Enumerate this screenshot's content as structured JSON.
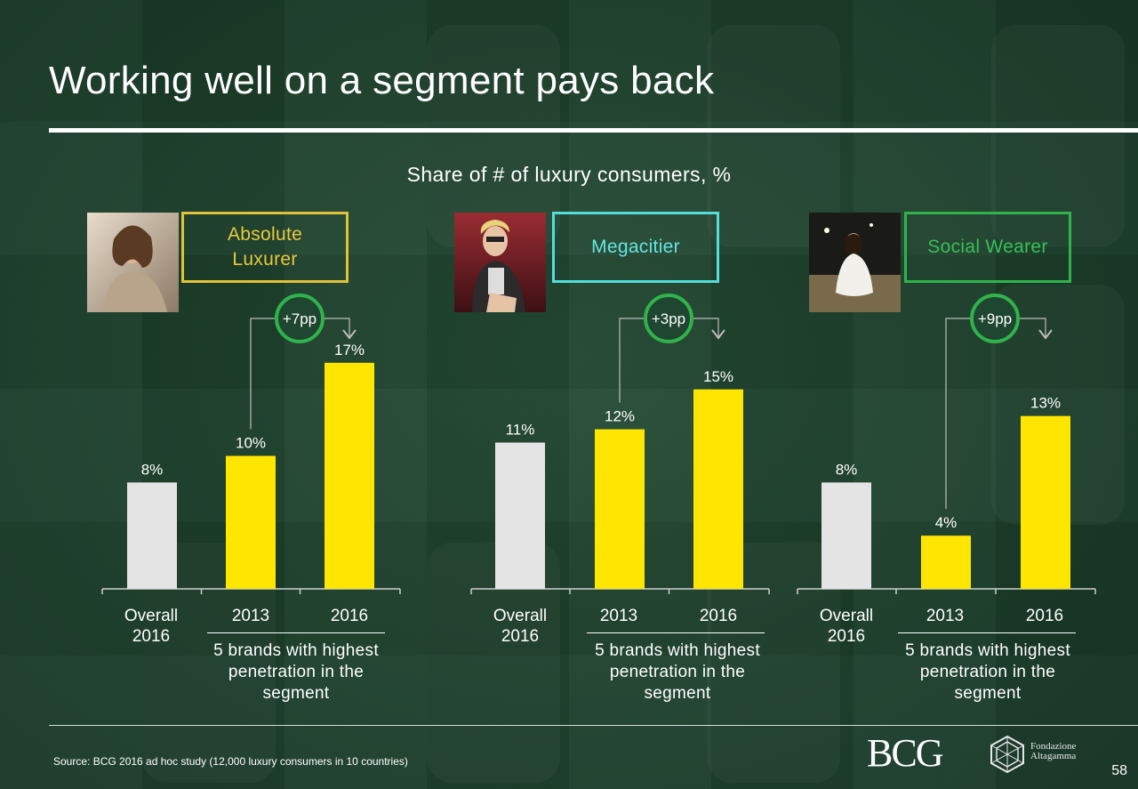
{
  "title": "Working well on a segment pays back",
  "subtitle": "Share of # of luxury consumers, %",
  "colors": {
    "background": "#1c3f2b",
    "overall_bar": "#e4e4e4",
    "brand_bar": "#ffe600",
    "diff_circle": "#2fb34a",
    "absolute_luxurer": "#e0c23a",
    "megacitier": "#54ddd9",
    "social_wearer": "#2fb34a"
  },
  "footer": {
    "source": "Source: BCG 2016 ad hoc study (12,000 luxury consumers in 10 countries)",
    "page_number": "58",
    "logo_bcg": "BCG",
    "logo_altagamma": "Fondazione Altagamma"
  },
  "chart_data": [
    {
      "type": "bar",
      "segment": "Absolute Luxurer",
      "categories": [
        "Overall\n2016",
        "2013",
        "2016"
      ],
      "values": [
        8,
        10,
        17
      ],
      "value_labels": [
        "8%",
        "10%",
        "17%"
      ],
      "change_label": "+7pp",
      "group_label": "5 brands with highest penetration in the segment"
    },
    {
      "type": "bar",
      "segment": "Megacitier",
      "categories": [
        "Overall\n2016",
        "2013",
        "2016"
      ],
      "values": [
        11,
        12,
        15
      ],
      "value_labels": [
        "11%",
        "12%",
        "15%"
      ],
      "change_label": "+3pp",
      "group_label": "5 brands with highest penetration in the segment"
    },
    {
      "type": "bar",
      "segment": "Social Wearer",
      "categories": [
        "Overall\n2016",
        "2013",
        "2016"
      ],
      "values": [
        8,
        4,
        13
      ],
      "value_labels": [
        "8%",
        "4%",
        "13%"
      ],
      "change_label": "+9pp",
      "group_label": "5 brands with highest penetration in the segment"
    }
  ]
}
